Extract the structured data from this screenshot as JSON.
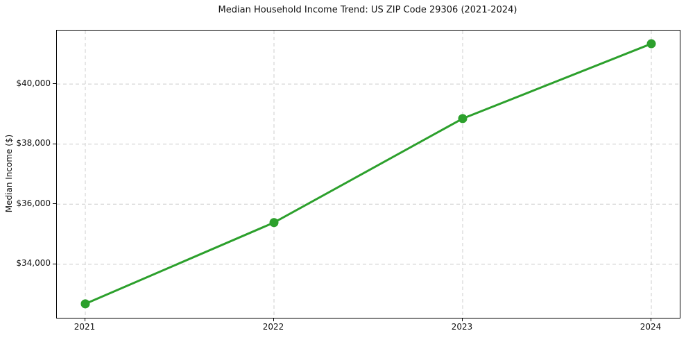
{
  "chart_data": {
    "type": "line",
    "title": "Median Household Income Trend: US ZIP Code 29306 (2021-2024)",
    "xlabel": "",
    "ylabel": "Median Income ($)",
    "categories": [
      "2021",
      "2022",
      "2023",
      "2024"
    ],
    "series": [
      {
        "name": "Median Household Income",
        "values": [
          32685,
          35390,
          38850,
          41340
        ],
        "color": "#2ca02c",
        "marker": "circle",
        "line_width": 3,
        "marker_radius": 6.5
      }
    ],
    "ylim": [
      32220,
      41780
    ],
    "yticks": [
      34000,
      36000,
      38000,
      40000
    ],
    "ytick_labels": [
      "$34,000",
      "$36,000",
      "$38,000",
      "$40,000"
    ],
    "xtick_labels": [
      "2021",
      "2022",
      "2023",
      "2024"
    ],
    "grid": true,
    "grid_color": "#cccccc",
    "grid_style": "dashed",
    "legend_position": "none",
    "background_color": "#ffffff",
    "spine_color": "#000000",
    "text_color": "#111111"
  }
}
